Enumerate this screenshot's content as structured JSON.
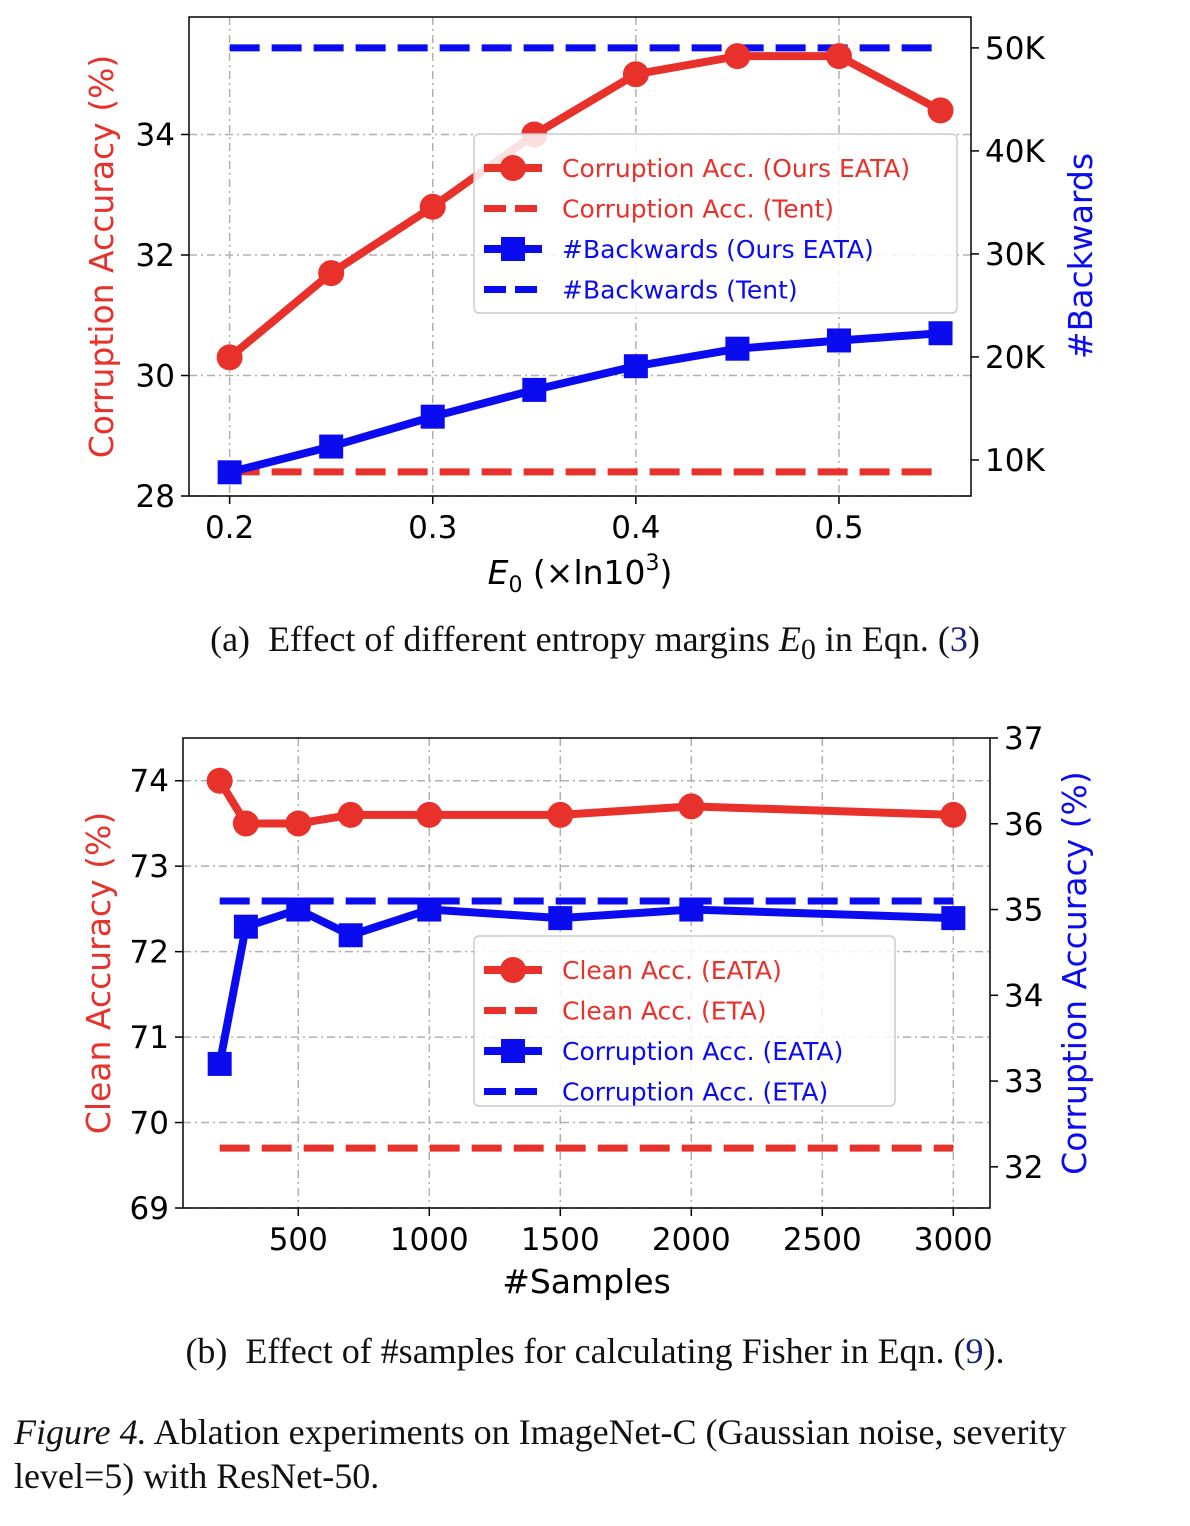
{
  "colors": {
    "red": "#e8312a",
    "blue": "#0b0bf0",
    "grid": "#b0b0b0"
  },
  "chart_data": [
    {
      "type": "line",
      "x": [
        0.2,
        0.25,
        0.3,
        0.35,
        0.4,
        0.45,
        0.5,
        0.55
      ],
      "xlim": [
        0.18,
        0.565
      ],
      "xticks": [
        "0.2",
        "0.3",
        "0.4",
        "0.5"
      ],
      "xtick_values": [
        0.2,
        0.3,
        0.4,
        0.5
      ],
      "xlabel_main": "E",
      "xlabel_sub": "0",
      "xlabel_rest": " (×ln10",
      "xlabel_sup": "3",
      "xlabel_end": ")",
      "ylabel_left": "Corruption Accuracy (%)",
      "ylabel_right": "#Backwards",
      "ylim_left": [
        28,
        35.95
      ],
      "yticks_left": [
        "28",
        "30",
        "32",
        "34"
      ],
      "ytick_values_left": [
        28,
        30,
        32,
        34
      ],
      "ylim_right": [
        6500,
        53000
      ],
      "yticks_right": [
        "10K",
        "20K",
        "30K",
        "40K",
        "50K"
      ],
      "ytick_values_right": [
        10000,
        20000,
        30000,
        40000,
        50000
      ],
      "grid": true,
      "legend_position": "center-right",
      "series": [
        {
          "name": "Corruption Acc. (Ours EATA)",
          "axis": "left",
          "style": "solid-circle",
          "color": "red",
          "values": [
            30.3,
            31.7,
            32.8,
            34.0,
            35.0,
            35.3,
            35.3,
            34.4
          ]
        },
        {
          "name": "Corruption Acc. (Tent)",
          "axis": "left",
          "style": "dashed",
          "color": "red",
          "values": [
            28.4,
            28.4,
            28.4,
            28.4,
            28.4,
            28.4,
            28.4,
            28.4
          ]
        },
        {
          "name": "#Backwards (Ours EATA)",
          "axis": "right",
          "style": "solid-square",
          "color": "blue",
          "values": [
            8800,
            11300,
            14200,
            16800,
            19100,
            20800,
            21600,
            22300
          ]
        },
        {
          "name": "#Backwards (Tent)",
          "axis": "right",
          "style": "dashed",
          "color": "blue",
          "values": [
            50000,
            50000,
            50000,
            50000,
            50000,
            50000,
            50000,
            50000
          ]
        }
      ]
    },
    {
      "type": "line",
      "x": [
        200,
        300,
        500,
        700,
        1000,
        1500,
        2000,
        3000
      ],
      "xlim": [
        60,
        3140
      ],
      "xticks": [
        "500",
        "1000",
        "1500",
        "2000",
        "2500",
        "3000"
      ],
      "xtick_values": [
        500,
        1000,
        1500,
        2000,
        2500,
        3000
      ],
      "xlabel": "#Samples",
      "ylabel_left": "Clean Accuracy (%)",
      "ylabel_right": "Corruption Accuracy (%)",
      "ylim_left": [
        69,
        74.5
      ],
      "yticks_left": [
        "69",
        "70",
        "71",
        "72",
        "73",
        "74"
      ],
      "ytick_values_left": [
        69,
        70,
        71,
        72,
        73,
        74
      ],
      "ylim_right": [
        31.52,
        37
      ],
      "yticks_right": [
        "32",
        "33",
        "34",
        "35",
        "36",
        "37"
      ],
      "ytick_values_right": [
        32,
        33,
        34,
        35,
        36,
        37
      ],
      "grid": true,
      "legend_position": "center-right",
      "series": [
        {
          "name": "Clean Acc. (EATA)",
          "axis": "left",
          "style": "solid-circle",
          "color": "red",
          "values": [
            74.0,
            73.5,
            73.5,
            73.6,
            73.6,
            73.6,
            73.7,
            73.6
          ]
        },
        {
          "name": "Clean Acc. (ETA)",
          "axis": "left",
          "style": "dashed",
          "color": "red",
          "values": [
            69.7,
            69.7,
            69.7,
            69.7,
            69.7,
            69.7,
            69.7,
            69.7
          ]
        },
        {
          "name": "Corruption Acc. (EATA)",
          "axis": "right",
          "style": "solid-square",
          "color": "blue",
          "values": [
            33.2,
            34.8,
            35.0,
            34.7,
            35.0,
            34.9,
            35.0,
            34.9
          ]
        },
        {
          "name": "Corruption Acc. (ETA)",
          "axis": "right",
          "style": "dashed",
          "color": "blue",
          "values": [
            35.1,
            35.1,
            35.1,
            35.1,
            35.1,
            35.1,
            35.1,
            35.1
          ]
        }
      ]
    }
  ],
  "captions": {
    "a_prefix": "(a)",
    "a_text": "Effect of different entropy margins",
    "a_sym": "E",
    "a_sub": "0",
    "a_mid": "in Eqn. (",
    "a_ref": "3",
    "a_end": ")",
    "b_prefix": "(b)",
    "b_text": "Effect of #samples for calculating Fisher in Eqn. (",
    "b_ref": "9",
    "b_end": ").",
    "figure_label": "Figure 4.",
    "figure_text": "Ablation experiments on ImageNet-C (Gaussian noise, severity level=5) with ResNet-50."
  }
}
